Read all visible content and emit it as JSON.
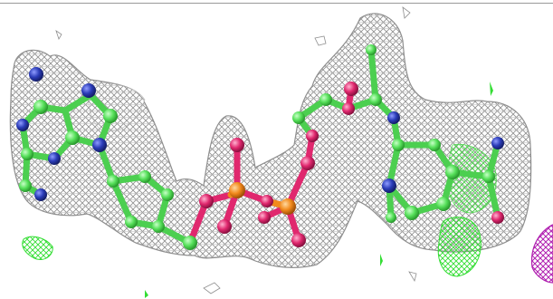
{
  "scene": {
    "subject": "molecule-density-map",
    "colors": {
      "mesh": "#8f8f8f",
      "carbon": "#56e05a",
      "nitrogen": "#2b3cb8",
      "oxygen": "#e0286e",
      "phosphorus": "#f28a1c",
      "difference_positive": "#33dd33",
      "difference_negative": "#b020b0"
    }
  }
}
